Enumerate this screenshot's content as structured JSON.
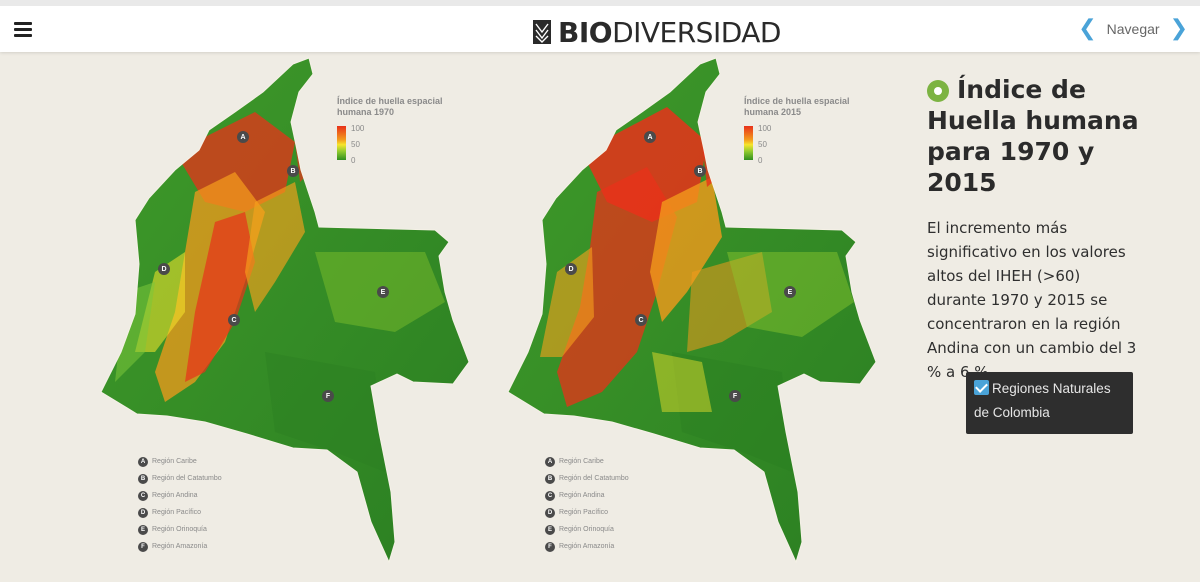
{
  "header": {
    "logo_bold": "BIO",
    "logo_light": "DIVERSIDAD",
    "nav_label": "Navegar",
    "menu_icon": "hamburger-icon",
    "prev_icon": "chevron-left-icon",
    "next_icon": "chevron-right-icon"
  },
  "maps": [
    {
      "legend_title_line1": "Índice de huella espacial",
      "legend_title_line2": "humana 1970",
      "ticks": [
        "100",
        "50",
        "0"
      ]
    },
    {
      "legend_title_line1": "Índice de huella espacial",
      "legend_title_line2": "humana 2015",
      "ticks": [
        "100",
        "50",
        "0"
      ]
    }
  ],
  "regions": [
    {
      "letter": "A",
      "name": "Región Caribe"
    },
    {
      "letter": "B",
      "name": "Región del Catatumbo"
    },
    {
      "letter": "C",
      "name": "Región Andina"
    },
    {
      "letter": "D",
      "name": "Región Pacífico"
    },
    {
      "letter": "E",
      "name": "Región Orinoquía"
    },
    {
      "letter": "F",
      "name": "Región Amazonía"
    }
  ],
  "info": {
    "title": "Índice de Huella humana para 1970 y 2015",
    "description": "El incremento más significativo en los valores altos del IHEH (>60) durante 1970 y 2015 se concentraron en la región Andina con un cambio del 3 % a 6 %.",
    "toggle_label": "Regiones Naturales de Colombia",
    "toggle_checked": true
  },
  "colors": {
    "high": "#e8311a",
    "mid": "#f7e52c",
    "low": "#2f8e1f",
    "accent": "#4aa3d8",
    "pin": "#7cb342"
  }
}
